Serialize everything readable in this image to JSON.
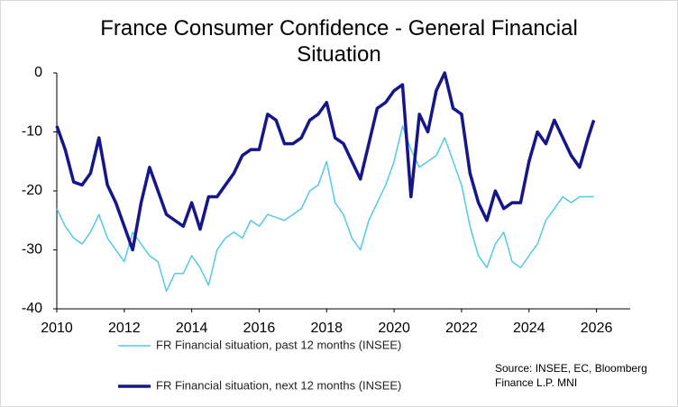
{
  "chart_data": {
    "type": "line",
    "title": "France Consumer Confidence - General Financial Situation",
    "source": "Source: INSEE, EC, Bloomberg Finance L.P. MNI",
    "x": [
      2010,
      2010.25,
      2010.5,
      2010.75,
      2011,
      2011.25,
      2011.5,
      2011.75,
      2012,
      2012.25,
      2012.5,
      2012.75,
      2013,
      2013.25,
      2013.5,
      2013.75,
      2014,
      2014.25,
      2014.5,
      2014.75,
      2015,
      2015.25,
      2015.5,
      2015.75,
      2016,
      2016.25,
      2016.5,
      2016.75,
      2017,
      2017.25,
      2017.5,
      2017.75,
      2018,
      2018.25,
      2018.5,
      2018.75,
      2019,
      2019.25,
      2019.5,
      2019.75,
      2020,
      2020.25,
      2020.5,
      2020.75,
      2021,
      2021.25,
      2021.5,
      2021.75,
      2022,
      2022.25,
      2022.5,
      2022.75,
      2023,
      2023.25,
      2023.5,
      2023.75,
      2024,
      2024.25,
      2024.5,
      2024.75,
      2025,
      2025.25,
      2025.5,
      2025.75,
      2025.92
    ],
    "series": [
      {
        "name": "FR Financial situation, past 12 months (INSEE)",
        "color": "#55c8e8",
        "width": 1.5,
        "values": [
          -23,
          -26,
          -28,
          -29,
          -27,
          -24,
          -28,
          -30,
          -32,
          -27,
          -29,
          -31,
          -32,
          -37,
          -34,
          -34,
          -31,
          -33,
          -36,
          -30,
          -28,
          -27,
          -28,
          -25,
          -26,
          -24,
          -24.5,
          -25,
          -24,
          -23,
          -20,
          -19,
          -15,
          -22,
          -24,
          -28,
          -30,
          -25,
          -22,
          -19,
          -15,
          -9,
          -13,
          -16,
          -15,
          -14,
          -11,
          -15,
          -19,
          -26,
          -31,
          -33,
          -29,
          -27,
          -32,
          -33,
          -31,
          -29,
          -25,
          -23,
          -21,
          -22,
          -21,
          -21,
          -21
        ]
      },
      {
        "name": "FR Financial situation, next 12 months (INSEE)",
        "color": "#16168c",
        "width": 3.5,
        "values": [
          -9,
          -13,
          -18.5,
          -19,
          -17,
          -11,
          -19,
          -22,
          -26,
          -30,
          -22,
          -16,
          -20,
          -24,
          -25,
          -26,
          -22,
          -26.5,
          -21,
          -21,
          -19,
          -17,
          -14,
          -13,
          -13,
          -7,
          -8,
          -12,
          -12,
          -11,
          -8,
          -7,
          -5,
          -11,
          -12,
          -15,
          -18,
          -12,
          -6,
          -5,
          -3,
          -2,
          -21,
          -7,
          -10,
          -3,
          0,
          -6,
          -7,
          -17,
          -22,
          -25,
          -20,
          -23,
          -22,
          -22,
          -15,
          -10,
          -12,
          -8,
          -11,
          -14,
          -16,
          -11,
          -8
        ]
      }
    ],
    "xlim": [
      2010,
      2027
    ],
    "xticks": [
      2010,
      2012,
      2014,
      2016,
      2018,
      2020,
      2022,
      2024,
      2026
    ],
    "ylim": [
      -40,
      0
    ],
    "yticks": [
      -40,
      -30,
      -20,
      -10,
      0
    ]
  }
}
